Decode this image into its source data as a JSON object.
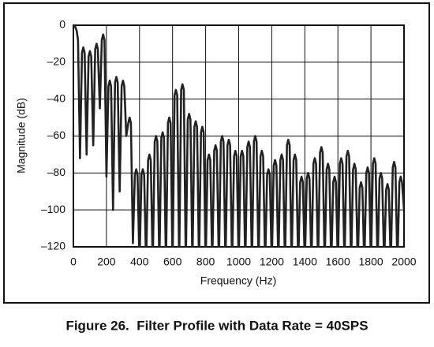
{
  "chart_data": {
    "type": "line",
    "caption": "Figure 26.  Filter Profile with Data Rate = 40SPS",
    "xlabel": "Frequency (Hz)",
    "ylabel": "Magnitude (dB)",
    "xlim": [
      0,
      2000
    ],
    "ylim": [
      -120,
      0
    ],
    "xticks": [
      0,
      200,
      400,
      600,
      800,
      1000,
      1200,
      1400,
      1600,
      1800,
      2000
    ],
    "yticks": [
      0,
      {
        "value": -20,
        "label": "–20"
      },
      {
        "value": -40,
        "label": "–40"
      },
      {
        "value": -60,
        "label": "–60"
      },
      {
        "value": -80,
        "label": "–80"
      },
      {
        "value": -100,
        "label": "–100"
      },
      {
        "value": -120,
        "label": "–120"
      }
    ],
    "grid": true,
    "x": [
      0,
      12,
      20,
      28,
      40,
      52,
      60,
      68,
      80,
      92,
      100,
      108,
      120,
      132,
      140,
      148,
      160,
      172,
      180,
      188,
      200,
      212,
      220,
      228,
      240,
      252,
      260,
      268,
      280,
      292,
      300,
      308,
      320,
      332,
      340,
      348,
      360,
      372,
      380,
      388,
      400,
      412,
      420,
      428,
      440,
      452,
      460,
      468,
      480,
      492,
      500,
      508,
      520,
      532,
      540,
      548,
      560,
      572,
      580,
      588,
      600,
      612,
      620,
      628,
      640,
      652,
      660,
      668,
      680,
      692,
      700,
      708,
      720,
      732,
      740,
      748,
      760,
      772,
      780,
      788,
      800,
      812,
      820,
      828,
      840,
      852,
      860,
      868,
      880,
      892,
      900,
      908,
      920,
      932,
      940,
      948,
      960,
      972,
      980,
      988,
      1000,
      1012,
      1020,
      1028,
      1040,
      1052,
      1060,
      1068,
      1080,
      1092,
      1100,
      1108,
      1120,
      1132,
      1140,
      1148,
      1160,
      1172,
      1180,
      1188,
      1200,
      1212,
      1220,
      1228,
      1240,
      1252,
      1260,
      1268,
      1280,
      1292,
      1300,
      1308,
      1320,
      1332,
      1340,
      1348,
      1360,
      1372,
      1380,
      1388,
      1400,
      1412,
      1420,
      1428,
      1440,
      1452,
      1460,
      1468,
      1480,
      1492,
      1500,
      1508,
      1520,
      1532,
      1540,
      1548,
      1560,
      1572,
      1580,
      1588,
      1600,
      1612,
      1620,
      1628,
      1640,
      1652,
      1660,
      1668,
      1680,
      1692,
      1700,
      1708,
      1720,
      1732,
      1740,
      1748,
      1760,
      1772,
      1780,
      1788,
      1800,
      1812,
      1820,
      1828,
      1840,
      1852,
      1860,
      1868,
      1880,
      1892,
      1900,
      1908,
      1920,
      1932,
      1940,
      1948,
      1960,
      1972,
      1980,
      1988,
      2000
    ],
    "series": [
      {
        "color": "#222222",
        "values": [
          0,
          -1,
          -3,
          -8,
          -72,
          -15,
          -12,
          -15,
          -70,
          -17,
          -14,
          -17,
          -65,
          -13,
          -10,
          -13,
          -45,
          -8,
          -5,
          -8,
          -82,
          -33,
          -30,
          -33,
          -100,
          -31,
          -28,
          -31,
          -90,
          -33,
          -30,
          -33,
          -60,
          -53,
          -50,
          -53,
          -118,
          -81,
          -78,
          -81,
          -130,
          -81,
          -78,
          -81,
          -130,
          -73,
          -70,
          -73,
          -130,
          -63,
          -60,
          -63,
          -130,
          -61,
          -58,
          -61,
          -130,
          -53,
          -50,
          -53,
          -130,
          -38,
          -35,
          -38,
          -130,
          -35,
          -32,
          -35,
          -130,
          -51,
          -48,
          -51,
          -130,
          -55,
          -52,
          -55,
          -130,
          -58,
          -55,
          -58,
          -130,
          -73,
          -70,
          -73,
          -130,
          -68,
          -65,
          -68,
          -130,
          -63,
          -60,
          -63,
          -130,
          -65,
          -62,
          -65,
          -130,
          -71,
          -68,
          -71,
          -130,
          -71,
          -68,
          -71,
          -130,
          -66,
          -63,
          -66,
          -130,
          -63,
          -60,
          -63,
          -130,
          -71,
          -68,
          -71,
          -130,
          -81,
          -78,
          -81,
          -130,
          -76,
          -73,
          -76,
          -130,
          -73,
          -70,
          -73,
          -130,
          -65,
          -62,
          -65,
          -130,
          -73,
          -70,
          -73,
          -130,
          -85,
          -82,
          -85,
          -130,
          -83,
          -80,
          -83,
          -130,
          -75,
          -72,
          -75,
          -130,
          -69,
          -66,
          -69,
          -130,
          -78,
          -75,
          -78,
          -130,
          -85,
          -82,
          -85,
          -130,
          -75,
          -72,
          -75,
          -130,
          -71,
          -68,
          -71,
          -130,
          -78,
          -75,
          -78,
          -130,
          -88,
          -85,
          -88,
          -130,
          -80,
          -77,
          -80,
          -130,
          -75,
          -72,
          -75,
          -130,
          -83,
          -80,
          -83,
          -130,
          -89,
          -86,
          -89,
          -130,
          -77,
          -74,
          -77,
          -130,
          -85,
          -82,
          -85,
          -100
        ]
      }
    ]
  }
}
